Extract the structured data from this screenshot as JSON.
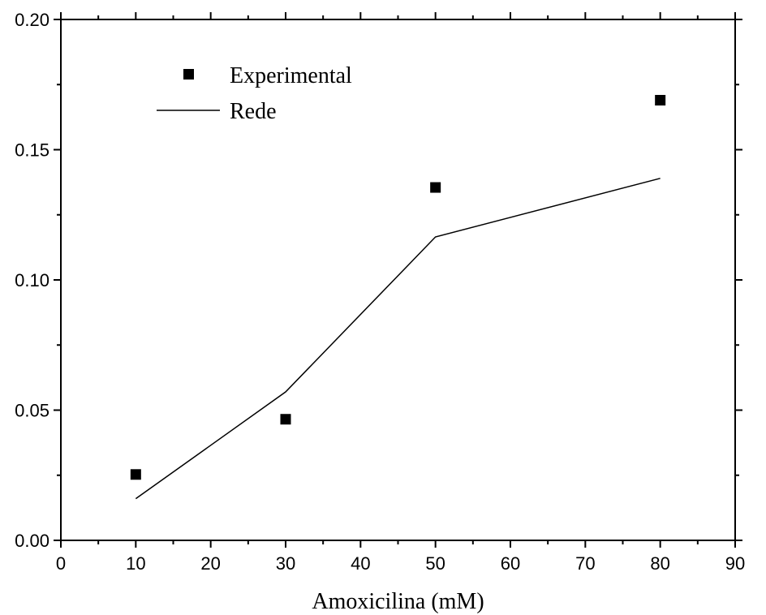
{
  "chart_data": {
    "type": "scatter",
    "title": "",
    "xlabel": "Amoxicilina (mM)",
    "ylabel": "",
    "xlim": [
      0,
      90
    ],
    "ylim": [
      0,
      0.2
    ],
    "x_ticks": [
      "0",
      "10",
      "20",
      "30",
      "40",
      "50",
      "60",
      "70",
      "80",
      "90"
    ],
    "y_ticks": [
      "0.00",
      "0.05",
      "0.10",
      "0.15",
      "0.20"
    ],
    "grid": false,
    "legend_position": "top-left",
    "series": [
      {
        "name": "Experimental",
        "type": "scatter",
        "marker": "square",
        "color": "#000000",
        "x": [
          10,
          30,
          50,
          80
        ],
        "y": [
          0.0253,
          0.0465,
          0.1355,
          0.169
        ]
      },
      {
        "name": "Rede",
        "type": "line",
        "color": "#000000",
        "x": [
          10,
          30,
          50,
          80
        ],
        "y": [
          0.016,
          0.057,
          0.1165,
          0.139
        ]
      }
    ]
  }
}
